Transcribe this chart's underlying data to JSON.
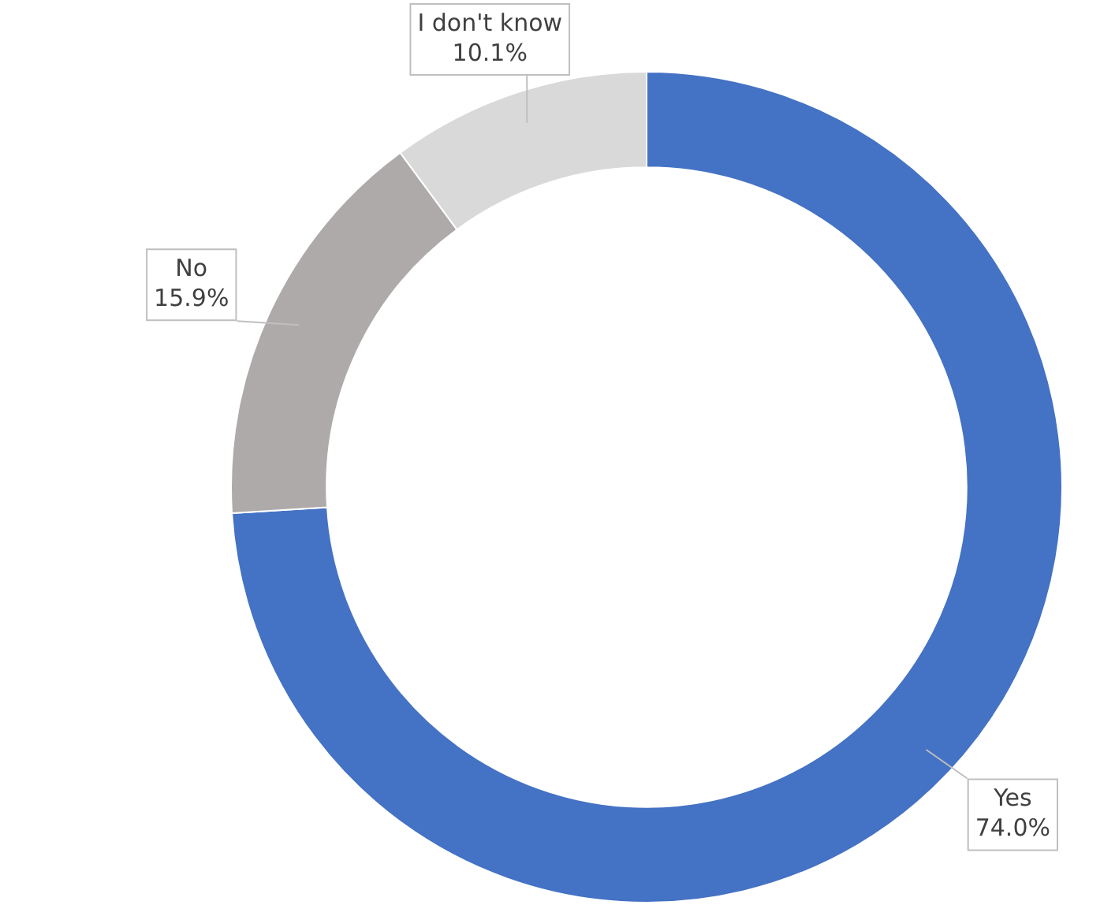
{
  "chart_data": {
    "type": "donut",
    "categories": [
      "Yes",
      "No",
      "I don't know"
    ],
    "values": [
      74.0,
      15.9,
      10.1
    ],
    "value_labels": [
      "74.0%",
      "15.9%",
      "10.1%"
    ],
    "colors": [
      "#4472c4",
      "#aeaaaa",
      "#d9d9d9"
    ],
    "legend": false
  }
}
